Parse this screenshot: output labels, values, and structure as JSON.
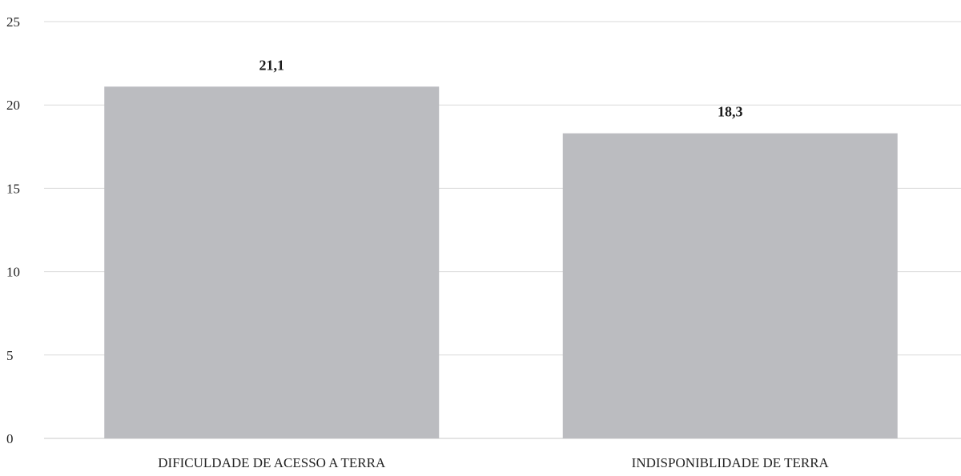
{
  "chart_data": {
    "type": "bar",
    "categories": [
      "DIFICULDADE DE ACESSO A TERRA",
      "INDISPONIBLIDADE DE TERRA"
    ],
    "values": [
      21.1,
      18.3
    ],
    "value_labels": [
      "21,1",
      "18,3"
    ],
    "title": "",
    "xlabel": "",
    "ylabel": "",
    "ylim": [
      0,
      25
    ],
    "yticks": [
      0,
      5,
      10,
      15,
      20,
      25
    ],
    "ytick_labels": [
      "0",
      "5",
      "10",
      "15",
      "20",
      "25"
    ],
    "grid": true,
    "legend": "none",
    "bar_color": "#bbbcc0"
  }
}
